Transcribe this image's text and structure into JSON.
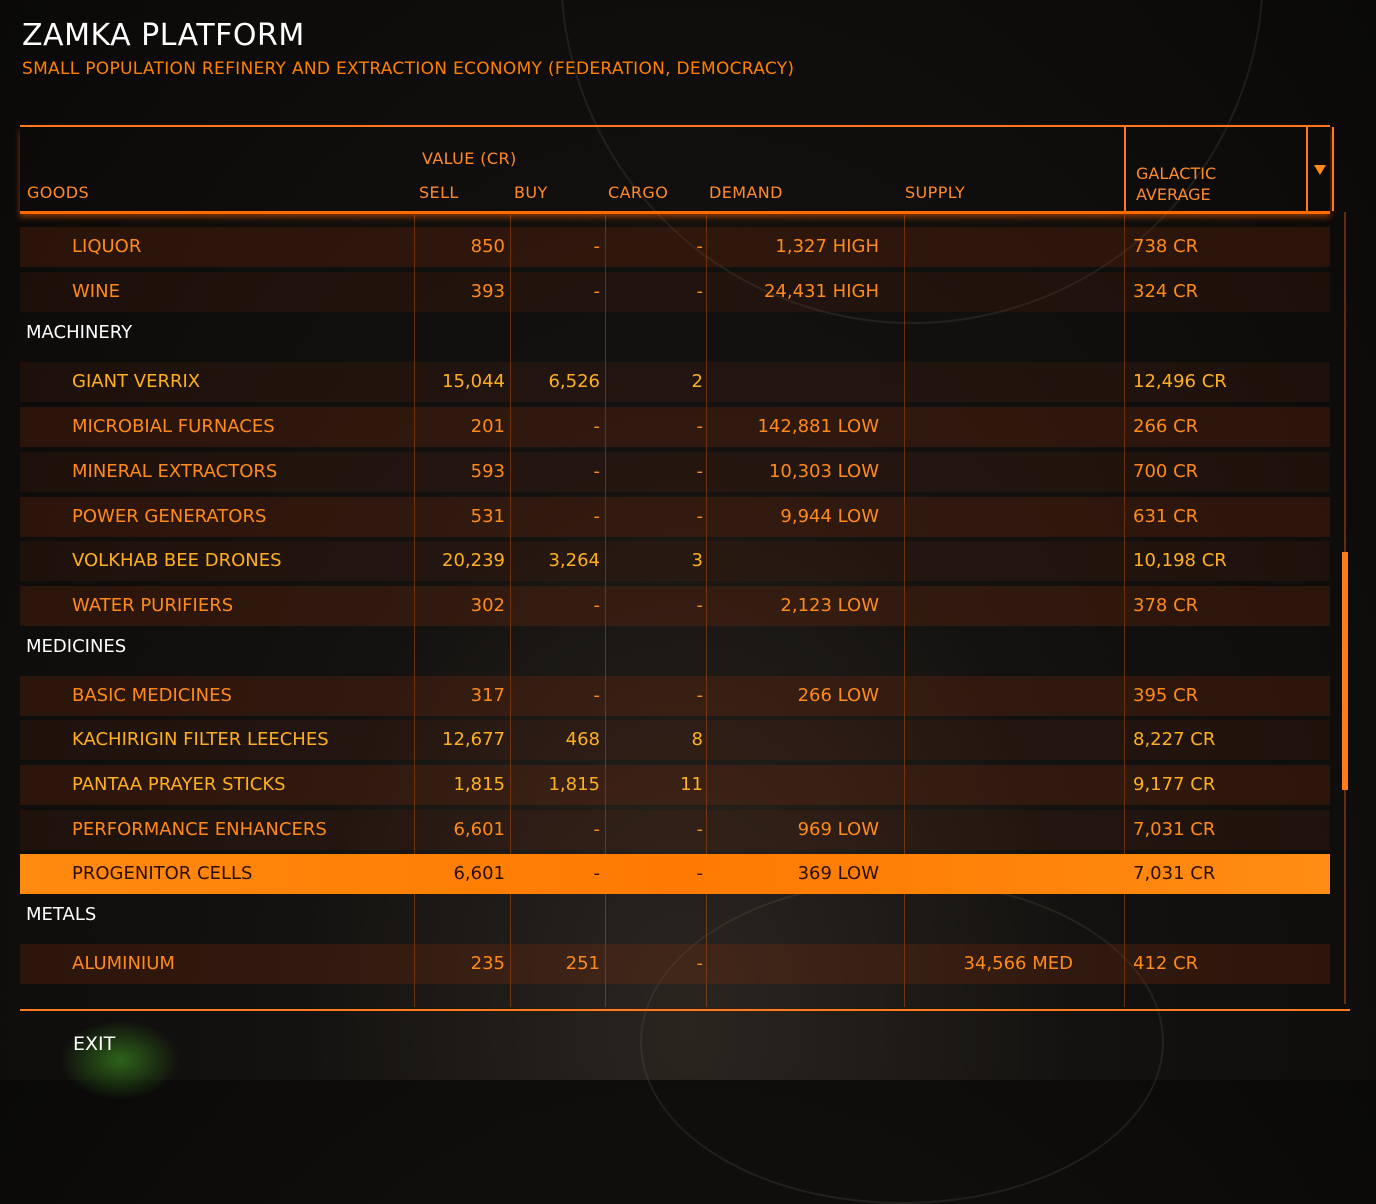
{
  "station": {
    "name": "ZAMKA PLATFORM",
    "description": "SMALL POPULATION REFINERY AND EXTRACTION ECONOMY (FEDERATION, DEMOCRACY)"
  },
  "columns": {
    "goods": "GOODS",
    "value_group": "VALUE (CR)",
    "sell": "SELL",
    "buy": "BUY",
    "cargo": "CARGO",
    "demand": "DEMAND",
    "supply": "SUPPLY",
    "galactic_average_line1": "GALACTIC",
    "galactic_average_line2": "AVERAGE"
  },
  "rows": [
    {
      "type": "item",
      "name": "LIQUOR",
      "sell": "850",
      "buy": "-",
      "cargo": "-",
      "demand": "1,327 HIGH",
      "supply": "",
      "galactic": "738 CR",
      "yellow": false
    },
    {
      "type": "item",
      "name": "WINE",
      "sell": "393",
      "buy": "-",
      "cargo": "-",
      "demand": "24,431 HIGH",
      "supply": "",
      "galactic": "324 CR",
      "yellow": false
    },
    {
      "type": "category",
      "name": "MACHINERY"
    },
    {
      "type": "item",
      "name": "GIANT VERRIX",
      "sell": "15,044",
      "buy": "6,526",
      "cargo": "2",
      "demand": "",
      "supply": "",
      "galactic": "12,496 CR",
      "yellow": true
    },
    {
      "type": "item",
      "name": "MICROBIAL FURNACES",
      "sell": "201",
      "buy": "-",
      "cargo": "-",
      "demand": "142,881 LOW",
      "supply": "",
      "galactic": "266 CR",
      "yellow": false
    },
    {
      "type": "item",
      "name": "MINERAL EXTRACTORS",
      "sell": "593",
      "buy": "-",
      "cargo": "-",
      "demand": "10,303 LOW",
      "supply": "",
      "galactic": "700 CR",
      "yellow": false
    },
    {
      "type": "item",
      "name": "POWER GENERATORS",
      "sell": "531",
      "buy": "-",
      "cargo": "-",
      "demand": "9,944 LOW",
      "supply": "",
      "galactic": "631 CR",
      "yellow": false
    },
    {
      "type": "item",
      "name": "VOLKHAB BEE DRONES",
      "sell": "20,239",
      "buy": "3,264",
      "cargo": "3",
      "demand": "",
      "supply": "",
      "galactic": "10,198 CR",
      "yellow": true
    },
    {
      "type": "item",
      "name": "WATER PURIFIERS",
      "sell": "302",
      "buy": "-",
      "cargo": "-",
      "demand": "2,123 LOW",
      "supply": "",
      "galactic": "378 CR",
      "yellow": false
    },
    {
      "type": "category",
      "name": "MEDICINES"
    },
    {
      "type": "item",
      "name": "BASIC MEDICINES",
      "sell": "317",
      "buy": "-",
      "cargo": "-",
      "demand": "266 LOW",
      "supply": "",
      "galactic": "395 CR",
      "yellow": false
    },
    {
      "type": "item",
      "name": "KACHIRIGIN FILTER LEECHES",
      "sell": "12,677",
      "buy": "468",
      "cargo": "8",
      "demand": "",
      "supply": "",
      "galactic": "8,227 CR",
      "yellow": true
    },
    {
      "type": "item",
      "name": "PANTAA PRAYER STICKS",
      "sell": "1,815",
      "buy": "1,815",
      "cargo": "11",
      "demand": "",
      "supply": "",
      "galactic": "9,177 CR",
      "yellow": true
    },
    {
      "type": "item",
      "name": "PERFORMANCE ENHANCERS",
      "sell": "6,601",
      "buy": "-",
      "cargo": "-",
      "demand": "969 LOW",
      "supply": "",
      "galactic": "7,031 CR",
      "yellow": false
    },
    {
      "type": "item",
      "name": "PROGENITOR CELLS",
      "sell": "6,601",
      "buy": "-",
      "cargo": "-",
      "demand": "369 LOW",
      "supply": "",
      "galactic": "7,031 CR",
      "yellow": false,
      "selected": true
    },
    {
      "type": "category",
      "name": "METALS"
    },
    {
      "type": "item",
      "name": "ALUMINIUM",
      "sell": "235",
      "buy": "251",
      "cargo": "-",
      "demand": "",
      "supply": "34,566 MED",
      "galactic": "412 CR",
      "yellow": false
    }
  ],
  "footer": {
    "exit_label": "EXIT"
  },
  "colors": {
    "accent": "#ff7a1a",
    "highlight": "#ffb020",
    "selected_bg": "#ff8000"
  }
}
